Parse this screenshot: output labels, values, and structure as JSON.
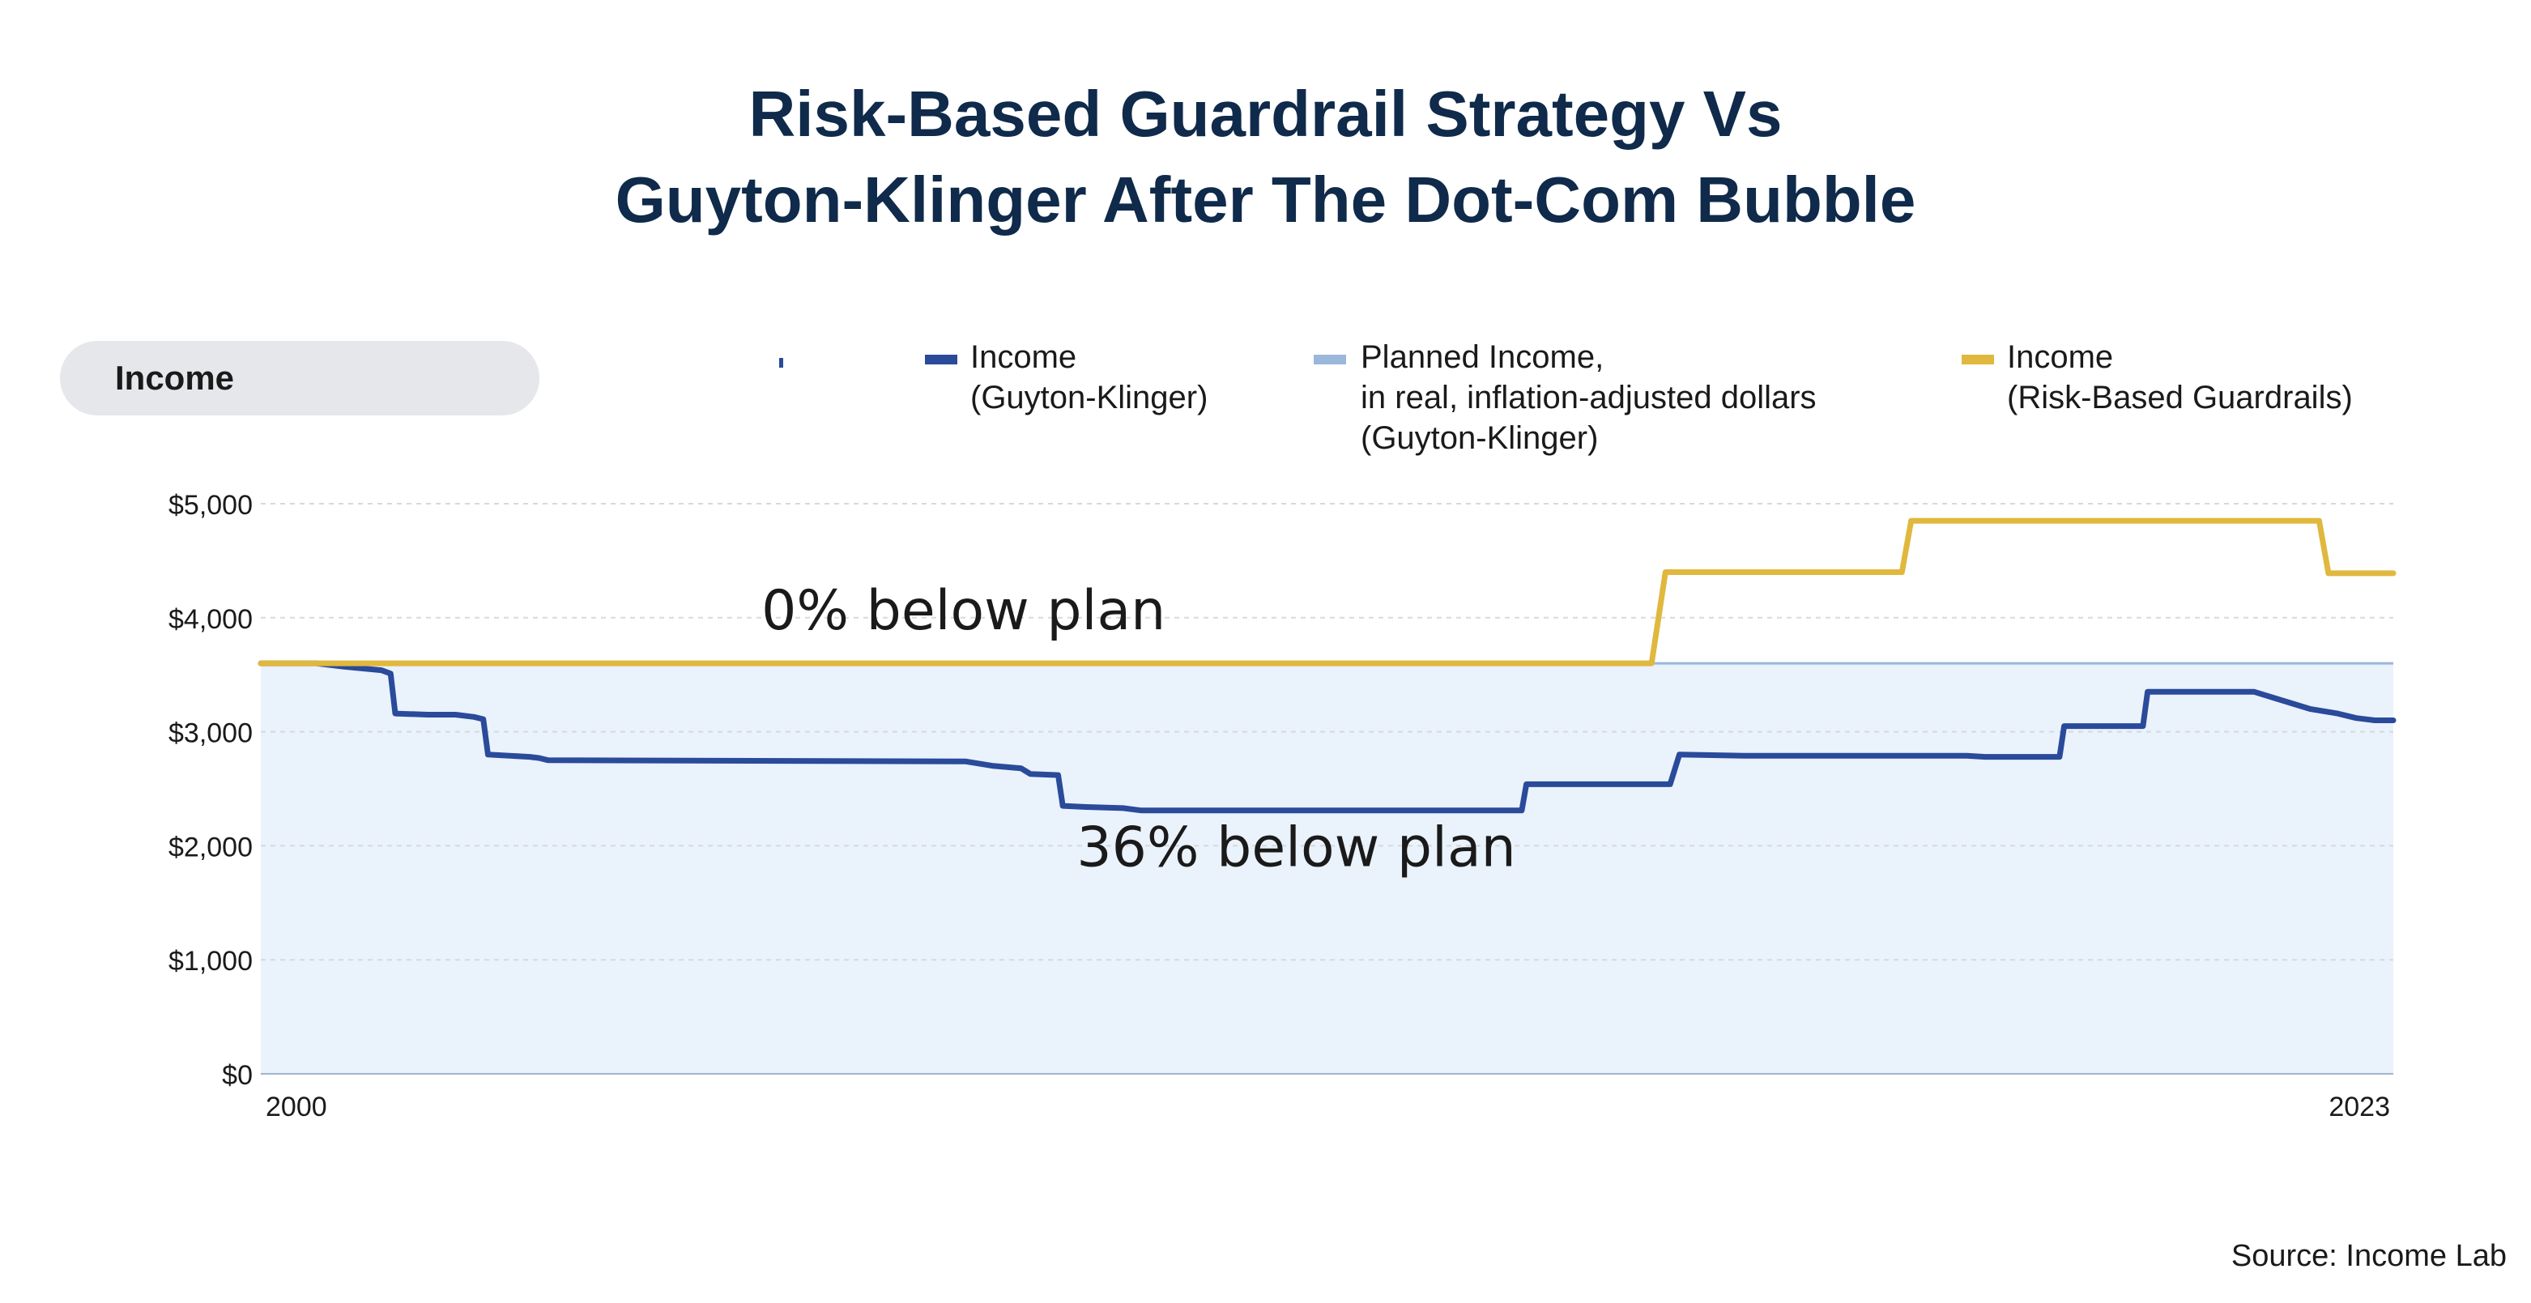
{
  "title": {
    "line1": "Risk-Based Guardrail Strategy Vs",
    "line2": "Guyton-Klinger After The Dot-Com Bubble"
  },
  "panel_label": "Income",
  "legend": [
    {
      "line1": "Income",
      "line2": "(Guyton-Klinger)",
      "line3": "",
      "color": "#2a4a9a"
    },
    {
      "line1": "Planned Income,",
      "line2": "in real, inflation-adjusted dollars",
      "line3": "(Guyton-Klinger)",
      "color": "#9bb7dc"
    },
    {
      "line1": "Income",
      "line2": "(Risk-Based Guardrails)",
      "line3": "",
      "color": "#e0b83e"
    }
  ],
  "source": "Source: Income Lab",
  "chart_data": {
    "type": "line",
    "x_range": [
      2000,
      2023
    ],
    "x_tick_labels": [
      "2000",
      "2023"
    ],
    "ylim": [
      0,
      5000
    ],
    "y_tick_labels": [
      "$5,000",
      "$4,000",
      "$3,000",
      "$2,000",
      "$1,000",
      "$0"
    ],
    "y_ticks": [
      5000,
      4000,
      3000,
      2000,
      1000,
      0
    ],
    "grid": true,
    "annotations": [
      {
        "text": "0% below plan",
        "x": 2005.4,
        "y": 3900
      },
      {
        "text": "36% below plan",
        "x": 2008.8,
        "y": 1820
      }
    ],
    "series": [
      {
        "name": "Income (Guyton-Klinger)",
        "color": "#2a4a9a",
        "points": [
          [
            2000.0,
            3600
          ],
          [
            2000.6,
            3600
          ],
          [
            2000.9,
            3570
          ],
          [
            2001.3,
            3540
          ],
          [
            2001.4,
            3510
          ],
          [
            2001.45,
            3160
          ],
          [
            2001.8,
            3150
          ],
          [
            2002.1,
            3150
          ],
          [
            2002.3,
            3130
          ],
          [
            2002.4,
            3110
          ],
          [
            2002.45,
            2800
          ],
          [
            2002.9,
            2780
          ],
          [
            2003.0,
            2770
          ],
          [
            2003.1,
            2750
          ],
          [
            2007.6,
            2740
          ],
          [
            2007.9,
            2700
          ],
          [
            2008.2,
            2680
          ],
          [
            2008.3,
            2630
          ],
          [
            2008.6,
            2620
          ],
          [
            2008.65,
            2350
          ],
          [
            2008.9,
            2340
          ],
          [
            2009.3,
            2330
          ],
          [
            2009.5,
            2310
          ],
          [
            2013.6,
            2310
          ],
          [
            2013.65,
            2540
          ],
          [
            2015.2,
            2540
          ],
          [
            2015.3,
            2800
          ],
          [
            2016.0,
            2790
          ],
          [
            2017.5,
            2790
          ],
          [
            2018.4,
            2790
          ],
          [
            2018.6,
            2780
          ],
          [
            2019.3,
            2780
          ],
          [
            2019.4,
            2780
          ],
          [
            2019.45,
            3050
          ],
          [
            2020.3,
            3050
          ],
          [
            2020.35,
            3350
          ],
          [
            2021.0,
            3350
          ],
          [
            2021.5,
            3350
          ],
          [
            2021.7,
            3300
          ],
          [
            2021.9,
            3250
          ],
          [
            2022.1,
            3200
          ],
          [
            2022.4,
            3160
          ],
          [
            2022.6,
            3120
          ],
          [
            2022.8,
            3100
          ],
          [
            2023.0,
            3100
          ]
        ]
      },
      {
        "name": "Planned Income, in real, inflation-adjusted dollars (Guyton-Klinger)",
        "color": "#9bb7dc",
        "fill": "#eaf2fb",
        "points": [
          [
            2000.0,
            3600
          ],
          [
            2023.0,
            3600
          ]
        ]
      },
      {
        "name": "Income (Risk-Based Guardrails)",
        "color": "#e0b83e",
        "points": [
          [
            2000.0,
            3600
          ],
          [
            2015.0,
            3600
          ],
          [
            2015.15,
            4400
          ],
          [
            2017.7,
            4400
          ],
          [
            2017.8,
            4850
          ],
          [
            2022.2,
            4850
          ],
          [
            2022.3,
            4390
          ],
          [
            2023.0,
            4390
          ]
        ]
      }
    ]
  }
}
